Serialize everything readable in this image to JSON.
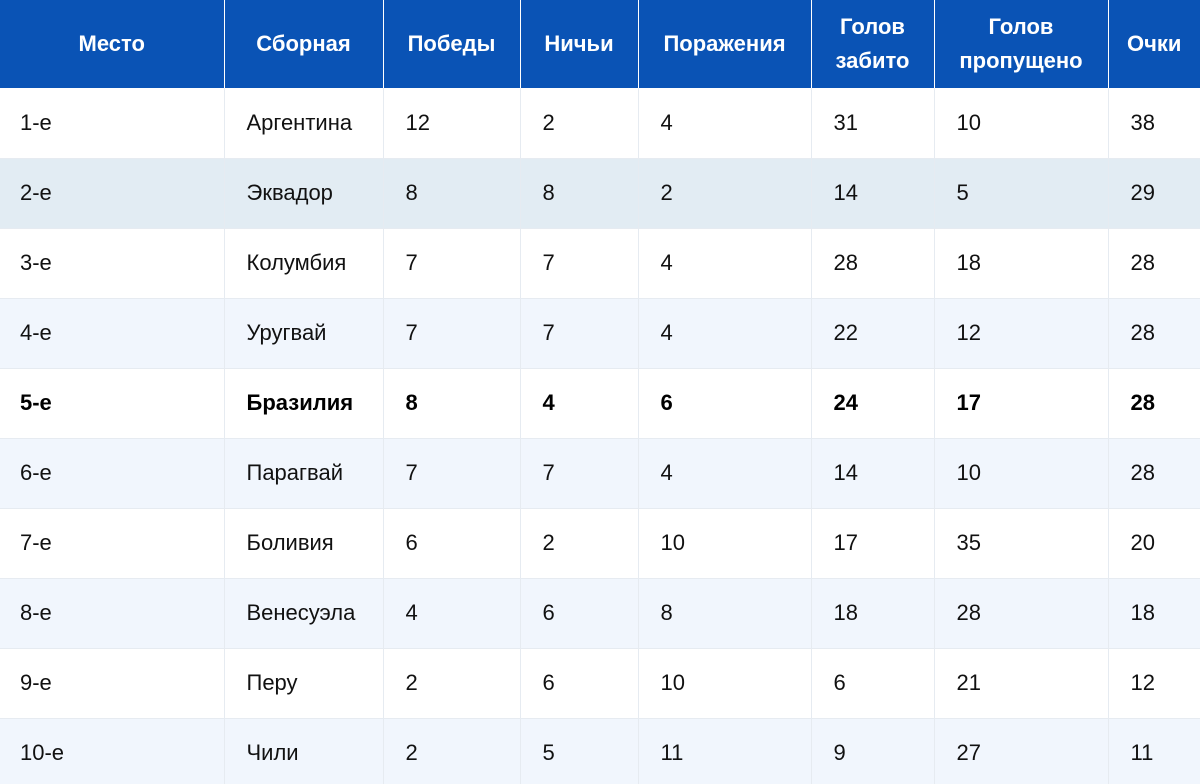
{
  "table": {
    "headers": [
      "Место",
      "Сборная",
      "Победы",
      "Ничьи",
      "Поражения",
      "Голов забито",
      "Голов пропущено",
      "Очки"
    ],
    "rows": [
      [
        "1-е",
        "Аргентина",
        "12",
        "2",
        "4",
        "31",
        "10",
        "38"
      ],
      [
        "2-е",
        "Эквадор",
        "8",
        "8",
        "2",
        "14",
        "5",
        "29"
      ],
      [
        "3-е",
        "Колумбия",
        "7",
        "7",
        "4",
        "28",
        "18",
        "28"
      ],
      [
        "4-е",
        "Уругвай",
        "7",
        "7",
        "4",
        "22",
        "12",
        "28"
      ],
      [
        "5-е",
        "Бразилия",
        "8",
        "4",
        "6",
        "24",
        "17",
        "28"
      ],
      [
        "6-е",
        "Парагвай",
        "7",
        "7",
        "4",
        "14",
        "10",
        "28"
      ],
      [
        "7-е",
        "Боливия",
        "6",
        "2",
        "10",
        "17",
        "35",
        "20"
      ],
      [
        "8-е",
        "Венесуэла",
        "4",
        "6",
        "8",
        "18",
        "28",
        "18"
      ],
      [
        "9-е",
        "Перу",
        "2",
        "6",
        "10",
        "6",
        "21",
        "12"
      ],
      [
        "10-е",
        "Чили",
        "2",
        "5",
        "11",
        "9",
        "27",
        "11"
      ]
    ],
    "highlighted_team": "Бразилия"
  },
  "colors": {
    "header_bg": "#0a53b5",
    "header_text": "#ffffff",
    "row_odd": "#ffffff",
    "row_even": "#f1f6fd",
    "row_alt": "#e2ecf3"
  }
}
